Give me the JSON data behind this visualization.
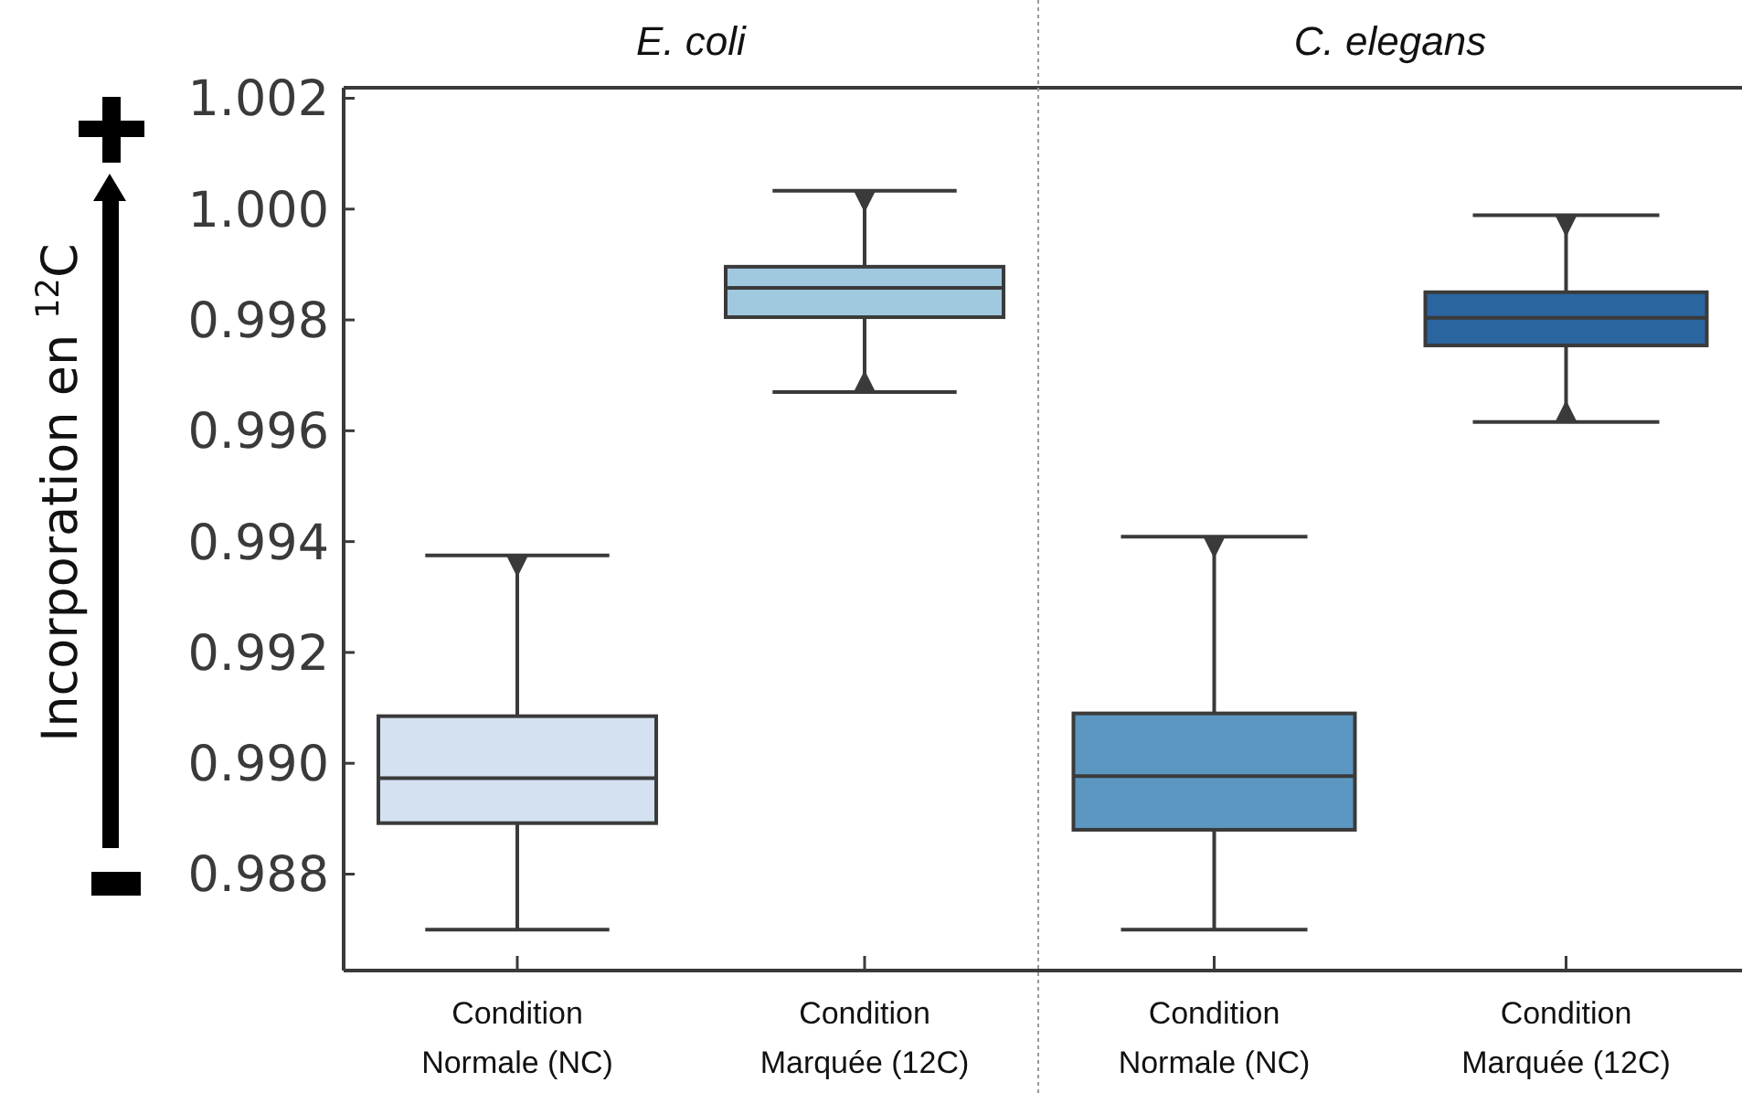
{
  "chart_data": [
    {
      "type": "box",
      "title": "E. coli",
      "ylabel": "Incorporation en $^{12}$C",
      "categories": [
        "Condition Normale (NC)",
        "Condition Marquée (12C)"
      ],
      "colors": [
        "#d4e1f0",
        "#a0c8df"
      ],
      "boxes": [
        {
          "low": 0.987,
          "q1": 0.98892,
          "median": 0.98973,
          "q3": 0.99085,
          "high": 0.99375
        },
        {
          "low": 0.9967,
          "q1": 0.99805,
          "median": 0.99858,
          "q3": 0.99896,
          "high": 1.00033
        }
      ],
      "ylim": [
        0.98626,
        1.00219
      ],
      "yticks": [
        0.988,
        {
          "value": 0.99,
          "label": "0.990"
        },
        0.992,
        0.994,
        0.996,
        0.998,
        {
          "value": 1.0,
          "label": "1.000"
        },
        1.002
      ]
    },
    {
      "type": "box",
      "title": "C. elegans",
      "categories": [
        "Condition Normale (NC)",
        "Condition Marquée (12C)"
      ],
      "colors": [
        "#5b97c1",
        "#2b65a0"
      ],
      "boxes": [
        {
          "low": 0.987,
          "q1": 0.9888,
          "median": 0.98977,
          "q3": 0.9909,
          "high": 0.99409
        },
        {
          "low": 0.99616,
          "q1": 0.99754,
          "median": 0.99804,
          "q3": 0.9985,
          "high": 0.99989
        }
      ],
      "ylim": [
        0.98626,
        1.00219
      ],
      "tick_labels": "x"
    }
  ]
}
